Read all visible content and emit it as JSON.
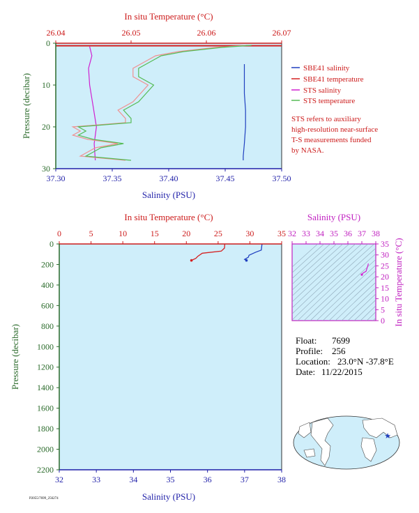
{
  "colors": {
    "background": "#cfeefa",
    "sbe_salinity": "#1f3fbf",
    "sbe_temperature": "#d42020",
    "sts_salinity": "#d020d0",
    "sts_temperature": "#55bb55",
    "sts_temperature_alt": "#f09090"
  },
  "chart_data": [
    {
      "type": "line",
      "panel": "near-surface",
      "title": "",
      "top_axis_label": "In situ Temperature (°C)",
      "top_ticks": [
        "26.04",
        "26.05",
        "26.06",
        "26.07"
      ],
      "temp_range": [
        26.04,
        26.07
      ],
      "bottom_axis_label": "Salinity (PSU)",
      "bottom_ticks": [
        "37.30",
        "37.35",
        "37.40",
        "37.45",
        "37.50"
      ],
      "sal_range": [
        37.3,
        37.5
      ],
      "left_axis_label": "Pressure (decibar)",
      "left_ticks": [
        "0",
        "10",
        "20",
        "30"
      ],
      "p_range": [
        0,
        30
      ],
      "legend": [
        {
          "name": "SBE41 salinity",
          "color": "#1f3fbf"
        },
        {
          "name": "SBE41 temperature",
          "color": "#d42020"
        },
        {
          "name": "STS salinity",
          "color": "#d020d0"
        },
        {
          "name": "STS temperature",
          "color": "#55bb55"
        }
      ],
      "note": [
        "STS refers to auxiliary",
        "high-resolution near-surface",
        "T-S measurements funded",
        "by NASA."
      ],
      "series": [
        {
          "name": "SBE41 salinity",
          "axis": "salinity",
          "p": [
            5,
            8,
            12,
            16,
            20,
            24,
            27,
            28
          ],
          "v": [
            37.467,
            37.467,
            37.467,
            37.468,
            37.468,
            37.467,
            37.466,
            37.466
          ]
        },
        {
          "name": "SBE41 temperature",
          "axis": "temperature",
          "p": [
            0.6,
            0.6
          ],
          "v": [
            26.04,
            26.07
          ]
        },
        {
          "name": "STS salinity",
          "axis": "salinity",
          "p": [
            0.8,
            3,
            6,
            10,
            15,
            20,
            24,
            28
          ],
          "v": [
            37.33,
            37.332,
            37.329,
            37.33,
            37.333,
            37.336,
            37.334,
            37.335
          ]
        },
        {
          "name": "STS temperature",
          "axis": "temperature",
          "p": [
            0.5,
            1,
            2,
            3,
            4,
            6,
            8,
            10,
            12,
            14,
            16,
            18,
            19,
            20,
            21,
            22,
            23,
            24,
            25,
            26,
            27,
            28
          ],
          "v": [
            26.066,
            26.062,
            26.057,
            26.054,
            26.053,
            26.051,
            26.051,
            26.053,
            26.052,
            26.051,
            26.049,
            26.05,
            26.05,
            26.043,
            26.044,
            26.043,
            26.045,
            26.049,
            26.046,
            26.045,
            26.044,
            26.05
          ]
        }
      ]
    },
    {
      "type": "line",
      "panel": "full-profile",
      "title": "",
      "top_axis_label": "In situ Temperature (°C)",
      "top_ticks": [
        "0",
        "5",
        "10",
        "15",
        "20",
        "25",
        "30",
        "35"
      ],
      "temp_range": [
        0,
        35
      ],
      "bottom_axis_label": "Salinity (PSU)",
      "bottom_ticks": [
        "32",
        "33",
        "34",
        "35",
        "36",
        "37",
        "38"
      ],
      "sal_range": [
        32,
        38
      ],
      "left_axis_label": "Pressure (decibar)",
      "left_ticks": [
        "0",
        "200",
        "400",
        "600",
        "800",
        "1000",
        "1200",
        "1400",
        "1600",
        "1800",
        "2000",
        "2200"
      ],
      "p_range": [
        0,
        2200
      ],
      "series": [
        {
          "name": "SBE41 salinity",
          "axis": "salinity",
          "p": [
            0,
            30,
            60,
            80,
            110,
            130,
            150,
            160
          ],
          "v": [
            37.47,
            37.46,
            37.45,
            37.3,
            37.12,
            37.1,
            37.0,
            37.05
          ]
        },
        {
          "name": "SBE41 temperature",
          "axis": "temperature",
          "p": [
            0,
            40,
            70,
            90,
            120,
            140,
            160
          ],
          "v": [
            26.05,
            26.0,
            25.5,
            22.5,
            21.8,
            21.5,
            20.8
          ]
        }
      ]
    },
    {
      "type": "scatter",
      "panel": "T-S diagram",
      "title": "",
      "top_axis_label": "Salinity (PSU)",
      "top_ticks": [
        "32",
        "33",
        "34",
        "35",
        "36",
        "37",
        "38"
      ],
      "sal_range": [
        32,
        38
      ],
      "right_axis_label": "In situ Temperature (°C)",
      "right_ticks": [
        "0",
        "5",
        "10",
        "15",
        "20",
        "25",
        "30",
        "35"
      ],
      "temp_range": [
        0,
        35
      ],
      "series": [
        {
          "name": "profile",
          "s": [
            37.0,
            37.1,
            37.3,
            37.45,
            37.47
          ],
          "t": [
            21,
            21.8,
            22.5,
            25.5,
            26.05
          ]
        }
      ]
    }
  ],
  "info": {
    "float_label": "Float:",
    "float_value": "7699",
    "profile_label": "Profile:",
    "profile_value": "256",
    "location_label": "Location:",
    "location_value": "23.0°N  -37.8°E",
    "date_label": "Date:",
    "date_value": "11/22/2015"
  },
  "footer_code": "P2055/7699_256274"
}
